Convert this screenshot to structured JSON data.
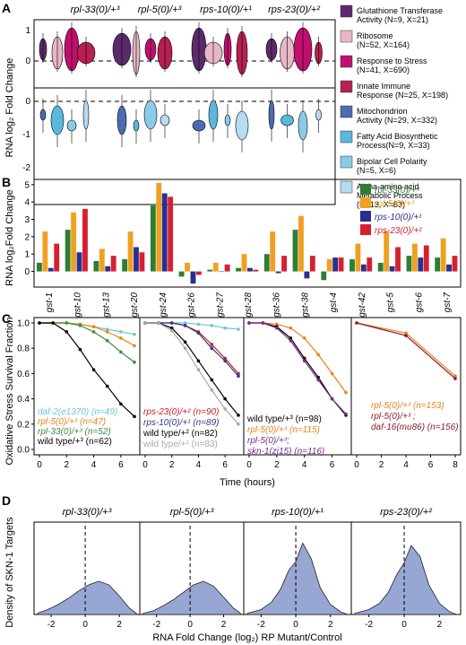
{
  "panels": {
    "A": {
      "label": "A",
      "genotypes": [
        "rpl-33(0)/+³",
        "rpl-5(0)/+³",
        "rps-10(0)/+¹",
        "rps-23(0)/+²"
      ],
      "ylabel": "RNA log₂ Fold Change",
      "yticks_top": [
        "1",
        "0"
      ],
      "yticks_bottom": [
        "0",
        "-1",
        "-2"
      ],
      "legend": [
        {
          "line1": "Glutathione Transferase",
          "line2": "Activity (N=9, X=21)",
          "color": "#5a2a6b"
        },
        {
          "line1": "Ribosome",
          "line2": "(N=52, X=164)",
          "color": "#e8b6c6"
        },
        {
          "line1": "Response to Stress",
          "line2": "(N=41, X=690)",
          "color": "#c0106e"
        },
        {
          "line1": "Innate Immune",
          "line2": "Response (N=25, X=198)",
          "color": "#b81f52"
        },
        {
          "line1": "Mitochondrion",
          "line2": "Activity (N=29, X=332)",
          "color": "#4d6bb0"
        },
        {
          "line1": "Fatty Acid Biosynthetic",
          "line2": "Process(N=9, X=33)",
          "color": "#5ab7dd"
        },
        {
          "line1": "Bipolar Cell Polarity",
          "line2": "(N=5, X=6)",
          "color": "#8ccbe8"
        },
        {
          "line1": "Alpha-amino acid",
          "line2": "Metabolic Process",
          "line3": "(N=13, X=83)",
          "color": "#b6dcef"
        }
      ]
    },
    "B": {
      "label": "B",
      "ylabel": "RNA log₂Fold Change",
      "chart_data": {
        "type": "bar",
        "categories": [
          "gst-1",
          "gst-10",
          "gst-13",
          "gst-20",
          "gst-24",
          "gst-26",
          "gst-27",
          "gst-28",
          "gst-36",
          "gst-38",
          "gst-4",
          "gst-42",
          "gst-5",
          "gst-6",
          "gst-7"
        ],
        "series": [
          {
            "name": "rpl-33(0)/+³",
            "color": "#2e7d32",
            "values": [
              0.5,
              2.4,
              0.6,
              0.7,
              3.8,
              -0.3,
              0.1,
              0.2,
              1.0,
              2.4,
              -0.5,
              0.7,
              0.5,
              0.9,
              0.8
            ]
          },
          {
            "name": "rpl-5(0)/+³",
            "color": "#f0a020",
            "values": [
              2.3,
              3.4,
              1.3,
              2.3,
              5.1,
              0.5,
              0.5,
              1.0,
              2.3,
              3.2,
              0.7,
              1.6,
              2.3,
              1.6,
              1.9
            ]
          },
          {
            "name": "rps-10(0)/+¹",
            "color": "#2a2f8f",
            "values": [
              0.2,
              1.1,
              0.3,
              1.4,
              4.5,
              -0.7,
              0.0,
              0.2,
              -0.1,
              -0.4,
              0.8,
              0.4,
              0.3,
              0.8,
              0.4
            ]
          },
          {
            "name": "rps-23(0)/+²",
            "color": "#d62030",
            "values": [
              1.6,
              3.6,
              0.9,
              1.1,
              4.3,
              -0.2,
              0.4,
              0.1,
              0.9,
              0.9,
              0.8,
              0.8,
              1.4,
              1.5,
              0.9
            ]
          }
        ],
        "yticks": [
          "5",
          "4",
          "3",
          "2",
          "1",
          "0"
        ],
        "ylim": [
          -0.9,
          5.3
        ]
      }
    },
    "C": {
      "label": "C",
      "ylabel": "Oxidative Stress Survival Fraction",
      "xlabel": "Time (hours)",
      "yticks": [
        "1.0",
        "0.8",
        "0.6",
        "0.4",
        "0.2",
        "0.0"
      ],
      "xticks_first": [
        "0",
        "2",
        "4",
        "6"
      ],
      "xticks_last": [
        "0",
        "2",
        "4",
        "6",
        "8"
      ],
      "chart_data": [
        {
          "type": "line",
          "xlim": [
            0,
            7
          ],
          "ylim": [
            0,
            1
          ],
          "series": [
            {
              "color": "#6ec4dc",
              "x": [
                0,
                1,
                2,
                3,
                4,
                5,
                6,
                7
              ],
              "y": [
                1,
                1,
                1,
                0.99,
                0.97,
                0.95,
                0.93,
                0.91
              ]
            },
            {
              "color": "#e8801e",
              "x": [
                0,
                1,
                2,
                3,
                4,
                5,
                6,
                7
              ],
              "y": [
                1,
                1,
                1,
                0.99,
                0.97,
                0.93,
                0.88,
                0.82
              ]
            },
            {
              "color": "#3d8a3d",
              "x": [
                0,
                1,
                2,
                3,
                4,
                5,
                6,
                7
              ],
              "y": [
                1,
                1,
                1,
                0.98,
                0.93,
                0.86,
                0.77,
                0.69
              ]
            },
            {
              "color": "#000000",
              "x": [
                0,
                1,
                2,
                3,
                4,
                5,
                6,
                7
              ],
              "y": [
                1,
                1,
                0.93,
                0.79,
                0.63,
                0.5,
                0.36,
                0.26
              ]
            }
          ],
          "legend": [
            {
              "name": "daf-2(e1370)",
              "count": "(n=49)",
              "color": "#6ec4dc",
              "italic": true
            },
            {
              "name": "rpl-5(0)/+³",
              "count": "(n=47)",
              "color": "#e8801e",
              "italic": true
            },
            {
              "name": "rpl-33(0)/+³",
              "count": "(n=52)",
              "color": "#3d8a3d",
              "italic": true
            },
            {
              "name": "wild type/+³",
              "count": "(n=62)",
              "color": "#000000",
              "italic": false
            }
          ]
        },
        {
          "type": "line",
          "xlim": [
            0,
            7
          ],
          "ylim": [
            0,
            1
          ],
          "series": [
            {
              "color": "#6ec4dc",
              "x": [
                0,
                1,
                2,
                3,
                4,
                5,
                6,
                7
              ],
              "y": [
                1,
                1,
                1,
                1,
                0.99,
                0.98,
                0.96,
                0.95
              ]
            },
            {
              "color": "#c81e2a",
              "x": [
                0,
                1,
                2,
                3,
                4,
                5,
                6,
                7
              ],
              "y": [
                1,
                1,
                1,
                0.98,
                0.93,
                0.83,
                0.72,
                0.6
              ]
            },
            {
              "color": "#2e3a8c",
              "x": [
                0,
                1,
                2,
                3,
                4,
                5,
                6,
                7
              ],
              "y": [
                1,
                1,
                1,
                0.98,
                0.92,
                0.8,
                0.7,
                0.58
              ]
            },
            {
              "color": "#000000",
              "x": [
                0,
                1,
                2,
                3,
                4,
                5,
                6,
                7
              ],
              "y": [
                1,
                1,
                0.96,
                0.85,
                0.7,
                0.55,
                0.4,
                0.27
              ]
            },
            {
              "color": "#a8a8a8",
              "x": [
                0,
                1,
                2,
                3,
                4,
                5,
                6,
                7
              ],
              "y": [
                1,
                1,
                0.94,
                0.8,
                0.63,
                0.47,
                0.32,
                0.2
              ]
            }
          ],
          "legend": [
            {
              "name": "rps-23(0)/+²",
              "count": "(n=90)",
              "color": "#c81e2a",
              "italic": true
            },
            {
              "name": "rps-10(0)/+¹",
              "count": "(n=89)",
              "color": "#2e3a8c",
              "italic": true
            },
            {
              "name": "wild type/+²",
              "count": "(n=82)",
              "color": "#000000",
              "italic": false
            },
            {
              "name": "wild type/+¹",
              "count": "(n=83)",
              "color": "#a8a8a8",
              "italic": false
            }
          ]
        },
        {
          "type": "line",
          "xlim": [
            0,
            7
          ],
          "ylim": [
            0,
            1
          ],
          "series": [
            {
              "color": "#e8801e",
              "x": [
                0,
                1,
                2,
                3,
                4,
                5,
                6,
                7
              ],
              "y": [
                1,
                1,
                0.99,
                0.96,
                0.88,
                0.75,
                0.6,
                0.45
              ]
            },
            {
              "color": "#000000",
              "x": [
                0,
                1,
                2,
                3,
                4,
                5,
                6,
                7
              ],
              "y": [
                1,
                1,
                0.97,
                0.88,
                0.72,
                0.57,
                0.4,
                0.27
              ]
            },
            {
              "color": "#7a2a8a",
              "x": [
                0,
                1,
                2,
                3,
                4,
                5,
                6,
                7
              ],
              "y": [
                1,
                1,
                0.96,
                0.86,
                0.7,
                0.55,
                0.4,
                0.28
              ]
            }
          ],
          "legend": [
            {
              "name": "wild type/+³",
              "count": "(n=98)",
              "color": "#000000",
              "italic": false
            },
            {
              "name": "rpl-5(0)/+³",
              "count": "(n=115)",
              "color": "#e8801e",
              "italic": true
            },
            {
              "name": "rpl-5(0)/+³;",
              "count": "",
              "color": "#7a2a8a",
              "italic": true
            },
            {
              "name": "skn-1(zj15)",
              "count": "(n=116)",
              "color": "#7a2a8a",
              "italic": true
            }
          ]
        },
        {
          "type": "line",
          "xlim": [
            0,
            8
          ],
          "ylim": [
            0,
            1
          ],
          "series": [
            {
              "color": "#e8801e",
              "x": [
                0,
                4,
                8
              ],
              "y": [
                1,
                0.92,
                0.58
              ]
            },
            {
              "color": "#8a1c2a",
              "x": [
                0,
                4,
                8
              ],
              "y": [
                1,
                0.9,
                0.56
              ]
            }
          ],
          "legend": [
            {
              "name": "rpl-5(0)/+³",
              "count": "(n=153)",
              "color": "#e8801e",
              "italic": true
            },
            {
              "name": "rpl-5(0)/+³ ;",
              "count": "",
              "color": "#8a1c2a",
              "italic": true
            },
            {
              "name": "daf-16(mu86)",
              "count": "(n=156)",
              "color": "#8a1c2a",
              "italic": true
            }
          ]
        }
      ]
    },
    "D": {
      "label": "D",
      "ylabel_line1": "Density of SKN-1 Targets",
      "xlabel": "RNA Fold Change (log₂) RP Mutant/Control",
      "titles": [
        "rpl-33(0)/+³",
        "rpl-5(0)/+³",
        "rps-10(0)/+¹",
        "rps-23(0)/+²"
      ],
      "xticks": [
        "-2",
        "0",
        "2"
      ],
      "chart_data": {
        "type": "area",
        "color": "#98a6d4",
        "xlim": [
          -3,
          3.2
        ],
        "ylim": [
          0,
          0.75
        ],
        "series": [
          {
            "x": [
              -2.8,
              -2.2,
              -1.6,
              -1.0,
              -0.4,
              0.2,
              0.8,
              1.4,
              2.0,
              2.6,
              3.0
            ],
            "y": [
              0.01,
              0.04,
              0.08,
              0.13,
              0.19,
              0.24,
              0.27,
              0.24,
              0.15,
              0.05,
              0.01
            ]
          },
          {
            "x": [
              -2.8,
              -2.2,
              -1.6,
              -1.0,
              -0.4,
              0.2,
              0.8,
              1.4,
              2.0,
              2.6,
              3.0
            ],
            "y": [
              0.01,
              0.03,
              0.07,
              0.12,
              0.18,
              0.24,
              0.27,
              0.23,
              0.14,
              0.05,
              0.01
            ]
          },
          {
            "x": [
              -2.8,
              -2.0,
              -1.4,
              -0.9,
              -0.4,
              0.0,
              0.4,
              0.9,
              1.4,
              2.0,
              2.6,
              3.0
            ],
            "y": [
              0.01,
              0.04,
              0.1,
              0.2,
              0.36,
              0.43,
              0.58,
              0.45,
              0.22,
              0.08,
              0.02,
              0.0
            ]
          },
          {
            "x": [
              -2.8,
              -2.0,
              -1.4,
              -0.9,
              -0.4,
              0.0,
              0.4,
              0.9,
              1.4,
              2.0,
              2.6,
              3.0
            ],
            "y": [
              0.01,
              0.04,
              0.09,
              0.18,
              0.33,
              0.42,
              0.56,
              0.47,
              0.24,
              0.09,
              0.02,
              0.0
            ]
          }
        ]
      }
    }
  }
}
